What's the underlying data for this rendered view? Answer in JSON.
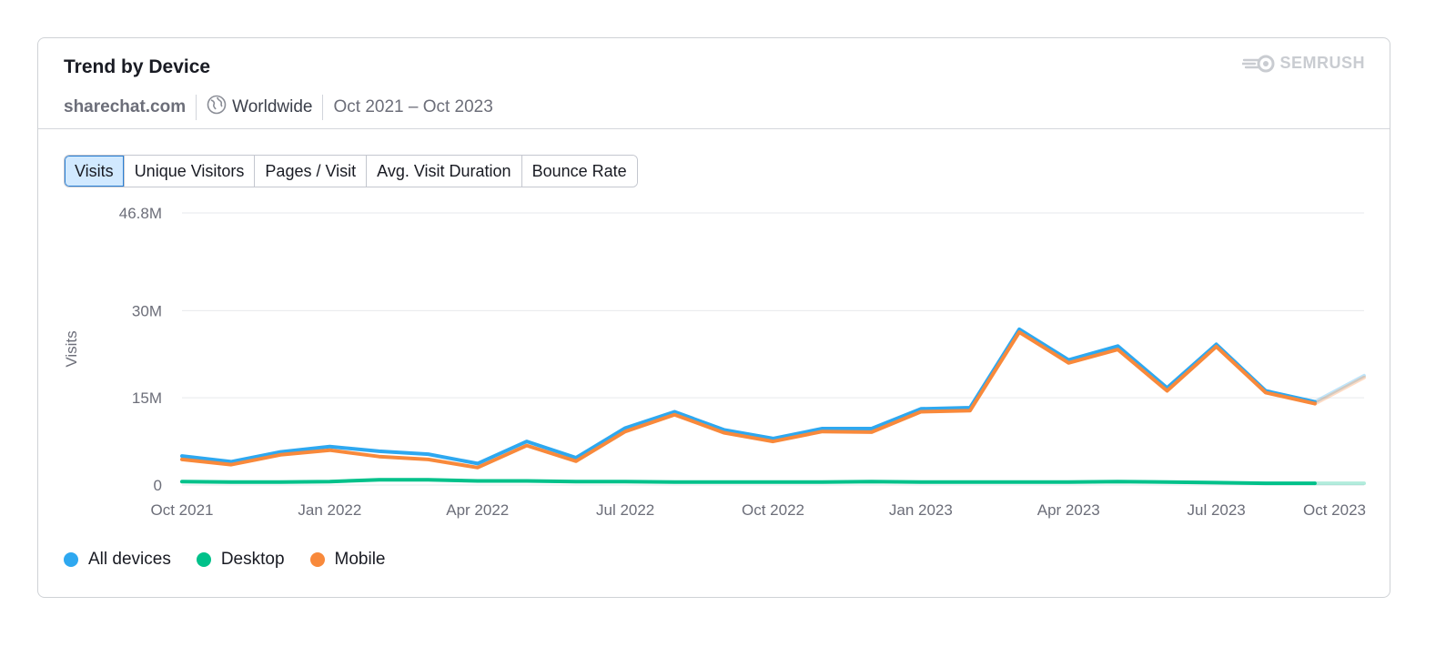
{
  "card": {
    "title": "Trend by Device",
    "domain": "sharechat.com",
    "region": "Worldwide",
    "period": "Oct 2021 – Oct 2023",
    "brand": "SEMRUSH",
    "globe_icon": "globe-icon"
  },
  "tabs": [
    {
      "label": "Visits",
      "active": true
    },
    {
      "label": "Unique Visitors",
      "active": false
    },
    {
      "label": "Pages / Visit",
      "active": false
    },
    {
      "label": "Avg. Visit Duration",
      "active": false
    },
    {
      "label": "Bounce Rate",
      "active": false
    }
  ],
  "colors": {
    "all_devices": "#2ea8f0",
    "desktop": "#00c18a",
    "mobile": "#f8893b",
    "grid": "#e7e9ec",
    "axis_text": "#6c6e79"
  },
  "chart_data": {
    "type": "line",
    "ylabel": "Visits",
    "xlabel": "",
    "ylim": [
      0,
      46.8
    ],
    "y_unit": "M",
    "y_ticks": [
      {
        "value": 0,
        "label": "0"
      },
      {
        "value": 15,
        "label": "15M"
      },
      {
        "value": 30,
        "label": "30M"
      },
      {
        "value": 46.8,
        "label": "46.8M"
      }
    ],
    "x": [
      "Oct 2021",
      "Nov 2021",
      "Dec 2021",
      "Jan 2022",
      "Feb 2022",
      "Mar 2022",
      "Apr 2022",
      "May 2022",
      "Jun 2022",
      "Jul 2022",
      "Aug 2022",
      "Sep 2022",
      "Oct 2022",
      "Nov 2022",
      "Dec 2022",
      "Jan 2023",
      "Feb 2023",
      "Mar 2023",
      "Apr 2023",
      "May 2023",
      "Jun 2023",
      "Jul 2023",
      "Aug 2023",
      "Sep 2023",
      "Oct 2023"
    ],
    "x_tick_labels": [
      "Oct 2021",
      "Jan 2022",
      "Apr 2022",
      "Jul 2022",
      "Oct 2022",
      "Jan 2023",
      "Apr 2023",
      "Jul 2023",
      "Oct 2023"
    ],
    "series": [
      {
        "name": "All devices",
        "color_key": "all_devices",
        "values": [
          5.0,
          4.0,
          5.7,
          6.6,
          5.8,
          5.3,
          3.7,
          7.5,
          4.7,
          9.8,
          12.6,
          9.5,
          8.0,
          9.7,
          9.7,
          13.1,
          13.3,
          26.8,
          21.5,
          23.9,
          16.7,
          24.2,
          16.2,
          14.3,
          18.8
        ]
      },
      {
        "name": "Desktop",
        "color_key": "desktop",
        "values": [
          0.6,
          0.5,
          0.5,
          0.6,
          0.9,
          0.9,
          0.7,
          0.7,
          0.6,
          0.6,
          0.5,
          0.5,
          0.5,
          0.5,
          0.6,
          0.5,
          0.5,
          0.5,
          0.5,
          0.6,
          0.5,
          0.4,
          0.3,
          0.3,
          0.3
        ]
      },
      {
        "name": "Mobile",
        "color_key": "mobile",
        "values": [
          4.4,
          3.5,
          5.2,
          6.0,
          4.9,
          4.4,
          3.0,
          6.8,
          4.1,
          9.2,
          12.1,
          9.0,
          7.5,
          9.2,
          9.1,
          12.6,
          12.8,
          26.3,
          21.0,
          23.3,
          16.2,
          23.8,
          15.9,
          14.0,
          18.5
        ]
      }
    ],
    "partial_last_point": true,
    "grid": true,
    "legend_position": "bottom-left"
  }
}
